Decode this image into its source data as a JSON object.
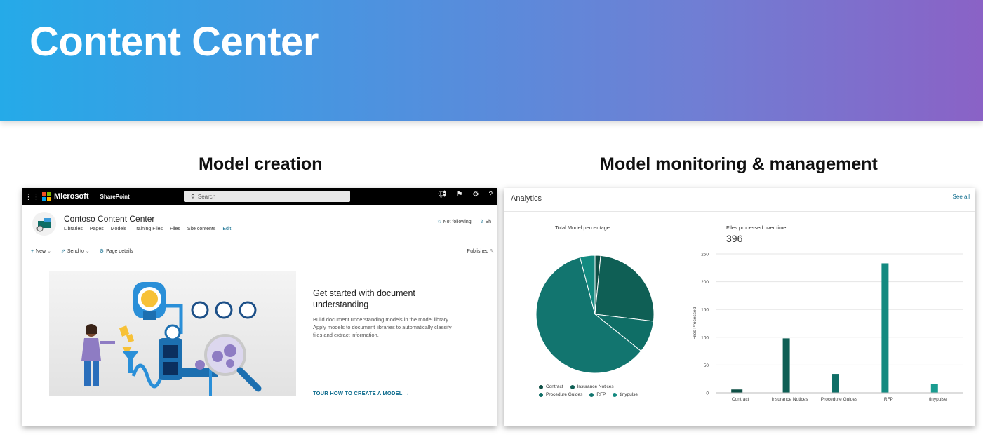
{
  "banner": {
    "title": "Content Center"
  },
  "sections": {
    "left": "Model creation",
    "right": "Model monitoring & management"
  },
  "sharepoint": {
    "brand": "Microsoft",
    "app": "SharePoint",
    "search_placeholder": "Search",
    "site_title": "Contoso Content Center",
    "nav": [
      "Libraries",
      "Pages",
      "Models",
      "Training Files",
      "Files",
      "Site contents",
      "Edit"
    ],
    "follow_label": "Not following",
    "share_label": "Sh",
    "commands": {
      "new": "New",
      "send_to": "Send to",
      "page_details": "Page details"
    },
    "published": "Published",
    "hero": {
      "title": "Get started with document understanding",
      "description": "Build document understanding models in the model library. Apply models to document libraries to automatically classify files and extract information.",
      "link": "TOUR HOW TO CREATE A MODEL"
    },
    "colors": {
      "accent": "#0b6a8c",
      "topbar": "#000000"
    }
  },
  "analytics": {
    "title": "Analytics",
    "see_all": "See all",
    "pie_title": "Total Model percentage",
    "bar_title": "Files processed over time",
    "bar_total": "396"
  },
  "chart_data": [
    {
      "type": "pie",
      "title": "Total Model percentage",
      "categories": [
        "Contract",
        "Insurance Notices",
        "Procedure Guides",
        "RFP",
        "tinypulse"
      ],
      "values": [
        1.5,
        24.7,
        8.6,
        58.6,
        4.0
      ],
      "colors": [
        "#0e4f45",
        "#0f5f55",
        "#0f6e66",
        "#12756f",
        "#138a80"
      ]
    },
    {
      "type": "bar",
      "title": "Files processed over time",
      "categories": [
        "Contract",
        "Insurance Notices",
        "Procedure Guides",
        "RFP",
        "tinypulse"
      ],
      "values": [
        6,
        98,
        34,
        233,
        16
      ],
      "ylabel": "Files Processed",
      "ylim": [
        0,
        250
      ],
      "yticks": [
        0,
        50,
        100,
        150,
        200,
        250
      ],
      "colors": [
        "#0e4f45",
        "#0f5f55",
        "#0f6e66",
        "#138a80",
        "#1a9c90"
      ]
    }
  ]
}
